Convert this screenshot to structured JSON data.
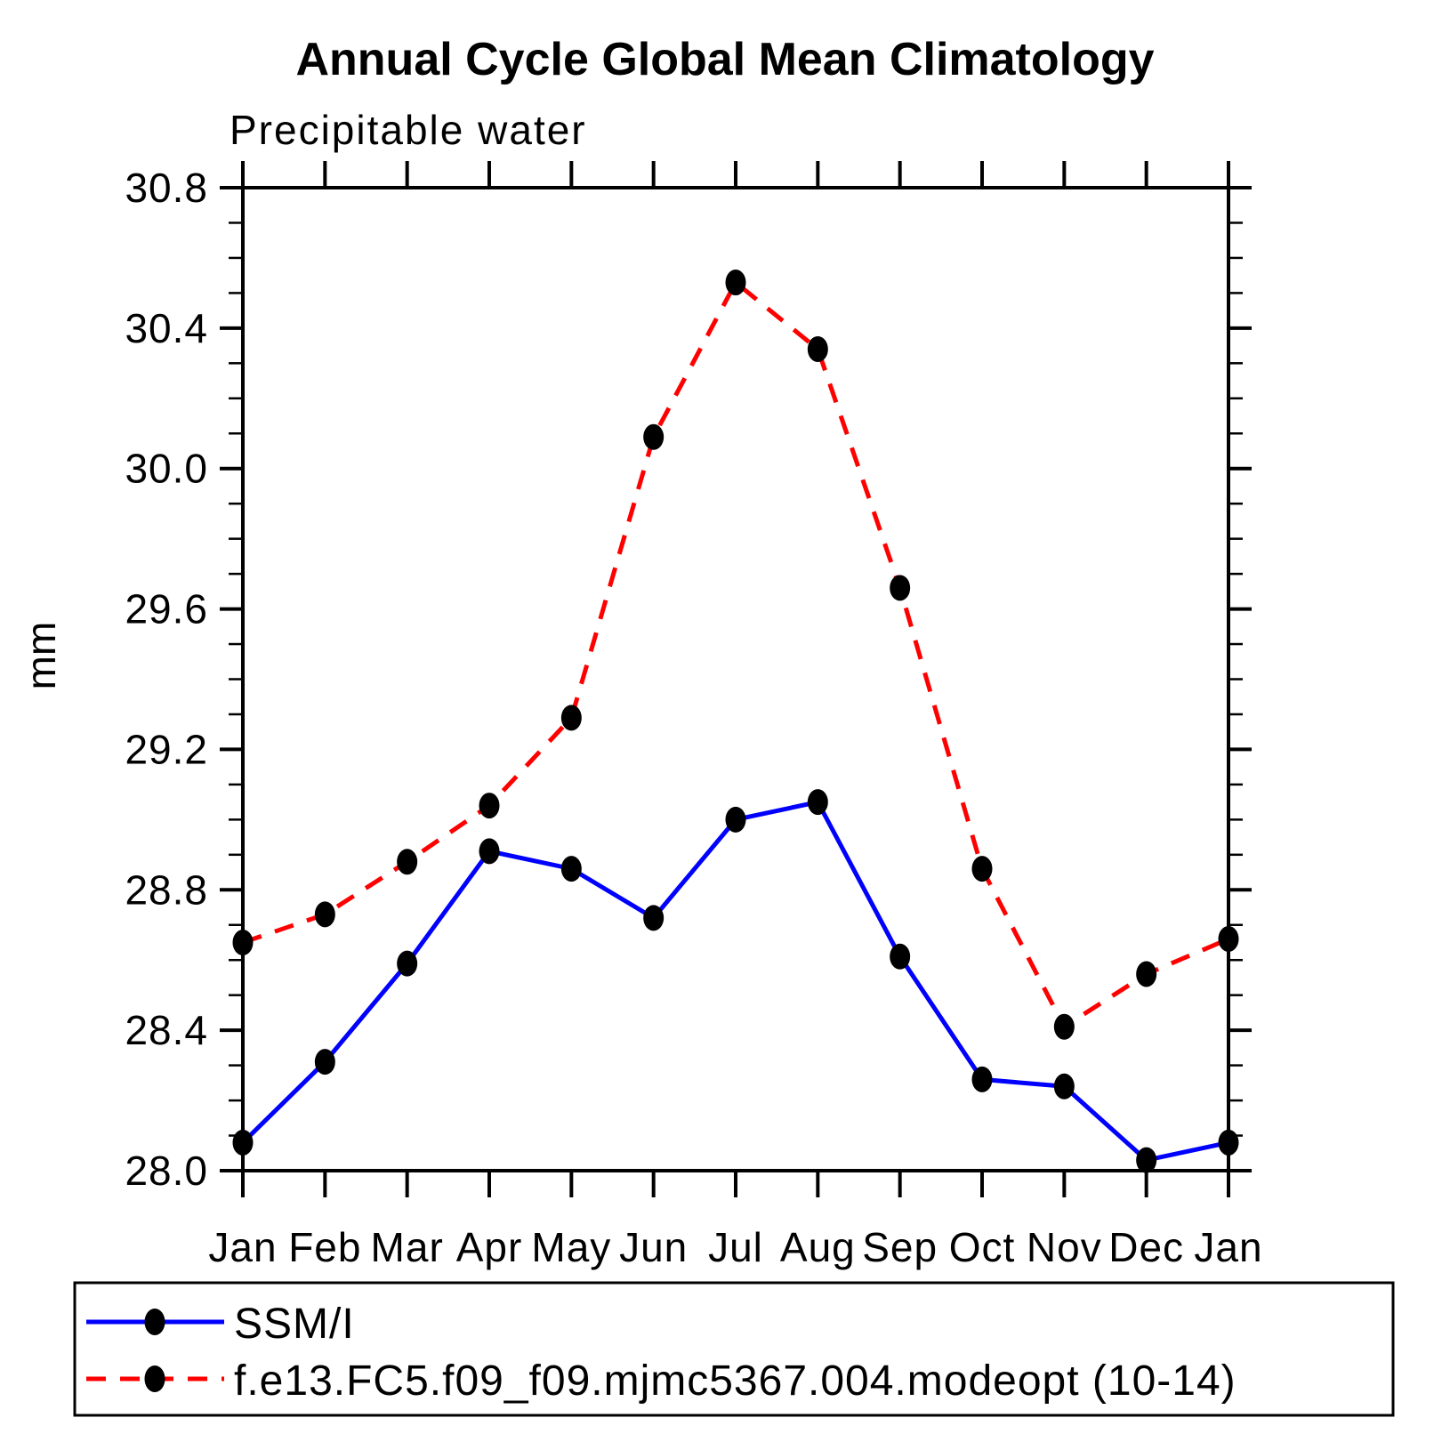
{
  "title": "Annual Cycle Global Mean Climatology",
  "subtitle": "Precipitable water",
  "ylabel": "mm",
  "colors": {
    "axis": "#000000",
    "marker": "#000000",
    "ssmi_line": "#0000ff",
    "model_line": "#ff0000",
    "background": "#ffffff"
  },
  "legend": {
    "entries": [
      {
        "label": "SSM/I",
        "color": "#0000ff",
        "style": "solid",
        "marker": "filled-circle"
      },
      {
        "label": "f.e13.FC5.f09_f09.mjmc5367.004.modeopt (10-14)",
        "color": "#ff0000",
        "style": "dashed",
        "marker": "filled-circle"
      }
    ]
  },
  "chart_data": {
    "type": "line",
    "title": "Annual Cycle Global Mean Climatology",
    "subtitle": "Precipitable water",
    "xlabel": "",
    "ylabel": "mm",
    "categories": [
      "Jan",
      "Feb",
      "Mar",
      "Apr",
      "May",
      "Jun",
      "Jul",
      "Aug",
      "Sep",
      "Oct",
      "Nov",
      "Dec",
      "Jan"
    ],
    "ylim": [
      28.0,
      30.8
    ],
    "ytick_major": 0.4,
    "ytick_minor": 0.1,
    "ytick_labels": [
      "28.0",
      "28.4",
      "28.8",
      "29.2",
      "29.6",
      "30.0",
      "30.4",
      "30.8"
    ],
    "grid": false,
    "legend_position": "bottom",
    "series": [
      {
        "name": "SSM/I",
        "line": "solid",
        "color": "#0000ff",
        "marker": "circle",
        "marker_color": "#000000",
        "values": [
          28.08,
          28.31,
          28.59,
          28.91,
          28.86,
          28.72,
          29.0,
          29.05,
          28.61,
          28.26,
          28.24,
          28.03,
          28.08
        ]
      },
      {
        "name": "f.e13.FC5.f09_f09.mjmc5367.004.modeopt (10-14)",
        "line": "dashed",
        "color": "#ff0000",
        "marker": "circle",
        "marker_color": "#000000",
        "values": [
          28.65,
          28.73,
          28.88,
          29.04,
          29.29,
          30.09,
          30.53,
          30.34,
          29.66,
          28.86,
          28.41,
          28.56,
          28.66
        ]
      }
    ]
  }
}
